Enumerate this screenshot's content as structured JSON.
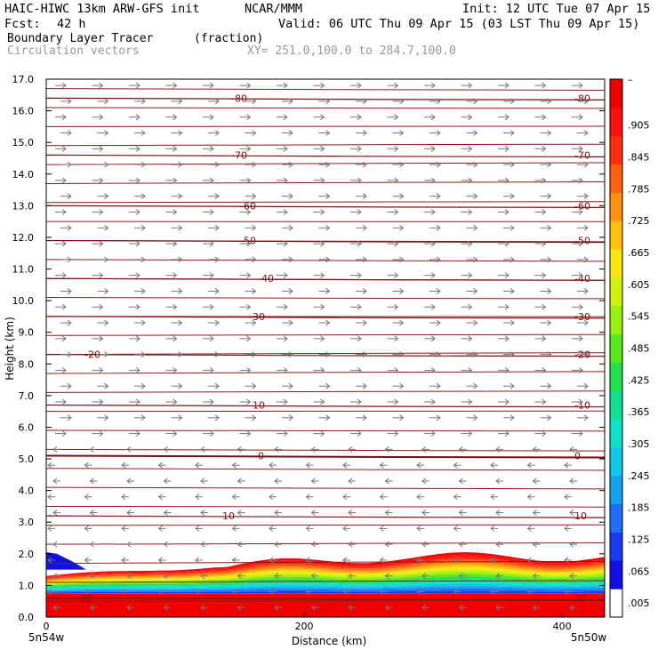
{
  "header": {
    "model": "HAIC-HIWC 13km ARW-GFS init",
    "org": "NCAR/MMM",
    "init": "Init: 12 UTC Tue 07 Apr 15",
    "fcst_label": "Fcst:",
    "fcst_value": "42 h",
    "valid": "Valid: 06 UTC Thu 09 Apr 15 (03 LST Thu 09 Apr 15)",
    "field_name": "Boundary Layer Tracer",
    "field_units": "(fraction)",
    "vectors_label": "Circulation vectors",
    "xy_label": "XY= 251.0,100.0 to 284.7,100.0"
  },
  "chart_data": {
    "type": "heatmap",
    "ylabel": "Height (km)",
    "xlabel": "Distance (km)",
    "ylim": [
      0,
      17
    ],
    "xlim": [
      0,
      433
    ],
    "y_ticks": [
      "0.0",
      "1.0",
      "2.0",
      "3.0",
      "4.0",
      "5.0",
      "6.0",
      "7.0",
      "8.0",
      "9.0",
      "10.0",
      "11.0",
      "12.0",
      "13.0",
      "14.0",
      "15.0",
      "16.0",
      "17.0"
    ],
    "x_ticks": [
      0,
      200,
      400
    ],
    "x_end_labels": [
      "5n54w",
      "5n50w"
    ],
    "colorbar": {
      "labels": [
        ".005",
        ".065",
        ".125",
        ".185",
        ".245",
        ".305",
        ".365",
        ".425",
        ".485",
        ".545",
        ".605",
        ".665",
        ".725",
        ".785",
        ".845",
        ".905",
        "–"
      ],
      "colors": [
        "#ffffff",
        "#1010e0",
        "#1a3cf0",
        "#1f6ef5",
        "#18a0f0",
        "#12c8e8",
        "#10e0c8",
        "#10e090",
        "#20e050",
        "#58e820",
        "#98f010",
        "#d0f010",
        "#f8e810",
        "#ffc010",
        "#ff9010",
        "#ff6010",
        "#ff3010",
        "#ff1010",
        "#f00000"
      ]
    },
    "temperature_contours": {
      "unit": "°C",
      "levels": [
        20,
        10,
        0,
        -10,
        -20,
        -30,
        -40,
        -50,
        -60,
        -70,
        -80
      ],
      "heights_km": [
        0.6,
        3.2,
        5.1,
        6.7,
        8.3,
        9.5,
        10.7,
        11.9,
        13.0,
        14.6,
        16.4
      ]
    },
    "tracer_field": {
      "description_values": "fraction ~1.0 near surface (0-0.8 km), decreasing to ~0 by ~1.9 km",
      "top_km_left": 1.3,
      "top_km_right": 1.9
    },
    "wind_vectors": {
      "upper_direction": "east",
      "lower_direction": "west",
      "reversal_height_km": 5.5
    }
  }
}
